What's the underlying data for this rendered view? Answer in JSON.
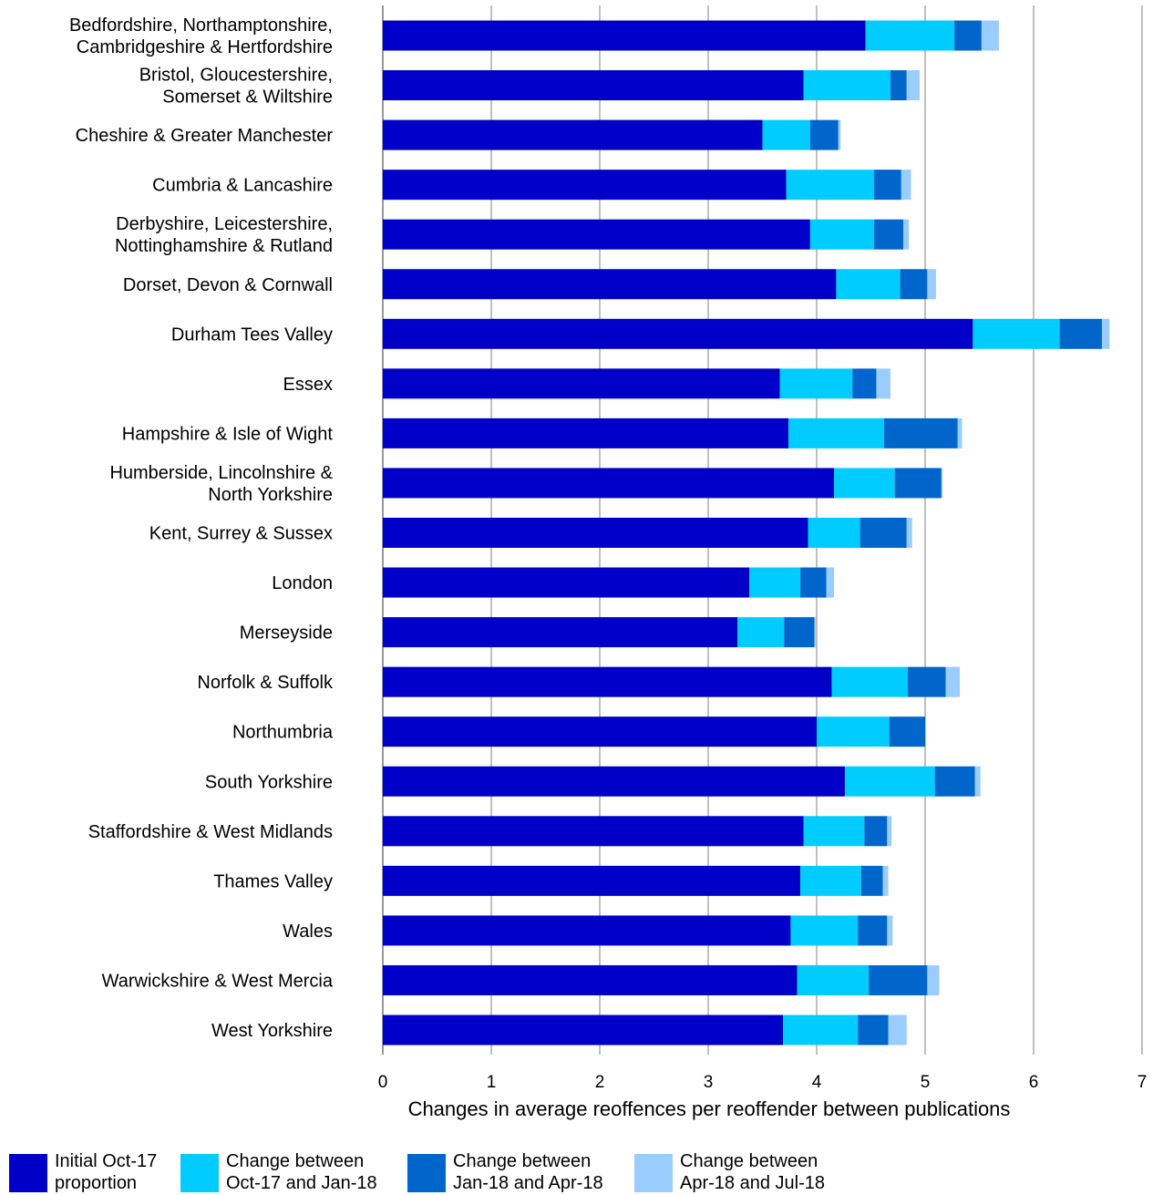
{
  "chart_data": {
    "type": "bar",
    "orientation": "horizontal",
    "stacked": true,
    "title": "",
    "xlabel": "Changes in average reoffences per reoffender between publications",
    "ylabel": "",
    "xlim": [
      0,
      7
    ],
    "xticks": [
      "0",
      "1",
      "2",
      "3",
      "4",
      "5",
      "6",
      "7"
    ],
    "grid": "vertical",
    "legend_position": "bottom",
    "categories": [
      [
        "Bedfordshire, Northamptonshire,",
        "Cambridgeshire & Hertfordshire"
      ],
      [
        "Bristol, Gloucestershire,",
        "Somerset & Wiltshire"
      ],
      [
        "Cheshire & Greater Manchester"
      ],
      [
        "Cumbria & Lancashire"
      ],
      [
        "Derbyshire, Leicestershire,",
        "Nottinghamshire & Rutland"
      ],
      [
        "Dorset, Devon & Cornwall"
      ],
      [
        "Durham Tees Valley"
      ],
      [
        "Essex"
      ],
      [
        "Hampshire & Isle of Wight"
      ],
      [
        "Humberside, Lincolnshire &",
        "North Yorkshire"
      ],
      [
        "Kent, Surrey & Sussex"
      ],
      [
        "London"
      ],
      [
        "Merseyside"
      ],
      [
        "Norfolk & Suffolk"
      ],
      [
        "Northumbria"
      ],
      [
        "South Yorkshire"
      ],
      [
        "Staffordshire & West Midlands"
      ],
      [
        "Thames Valley"
      ],
      [
        "Wales"
      ],
      [
        "Warwickshire & West Mercia"
      ],
      [
        "West Yorkshire"
      ]
    ],
    "series": [
      {
        "name": [
          "Initial Oct-17",
          "proportion"
        ],
        "color": "#0000C8",
        "values": [
          4.45,
          3.88,
          3.5,
          3.72,
          3.94,
          4.18,
          5.44,
          3.66,
          3.74,
          4.16,
          3.92,
          3.38,
          3.27,
          4.14,
          4.0,
          4.26,
          3.88,
          3.85,
          3.76,
          3.82,
          3.69
        ]
      },
      {
        "name": [
          "Change between",
          "Oct-17 and Jan-18"
        ],
        "color": "#00CCFF",
        "values": [
          0.82,
          0.8,
          0.44,
          0.81,
          0.59,
          0.59,
          0.8,
          0.67,
          0.88,
          0.56,
          0.48,
          0.47,
          0.43,
          0.7,
          0.67,
          0.83,
          0.56,
          0.56,
          0.62,
          0.66,
          0.69
        ]
      },
      {
        "name": [
          "Change between",
          "Jan-18 and Apr-18"
        ],
        "color": "#0066CC",
        "values": [
          0.25,
          0.15,
          0.26,
          0.25,
          0.27,
          0.25,
          0.39,
          0.22,
          0.68,
          0.43,
          0.43,
          0.24,
          0.28,
          0.35,
          0.33,
          0.37,
          0.21,
          0.2,
          0.27,
          0.54,
          0.28
        ]
      },
      {
        "name": [
          "Change between",
          "Apr-18 and Jul-18"
        ],
        "color": "#99CCFF",
        "values": [
          0.16,
          0.12,
          0.02,
          0.09,
          0.05,
          0.08,
          0.07,
          0.13,
          0.04,
          0.01,
          0.05,
          0.07,
          0.01,
          0.13,
          0.0,
          0.05,
          0.04,
          0.05,
          0.05,
          0.11,
          0.17
        ]
      }
    ]
  }
}
